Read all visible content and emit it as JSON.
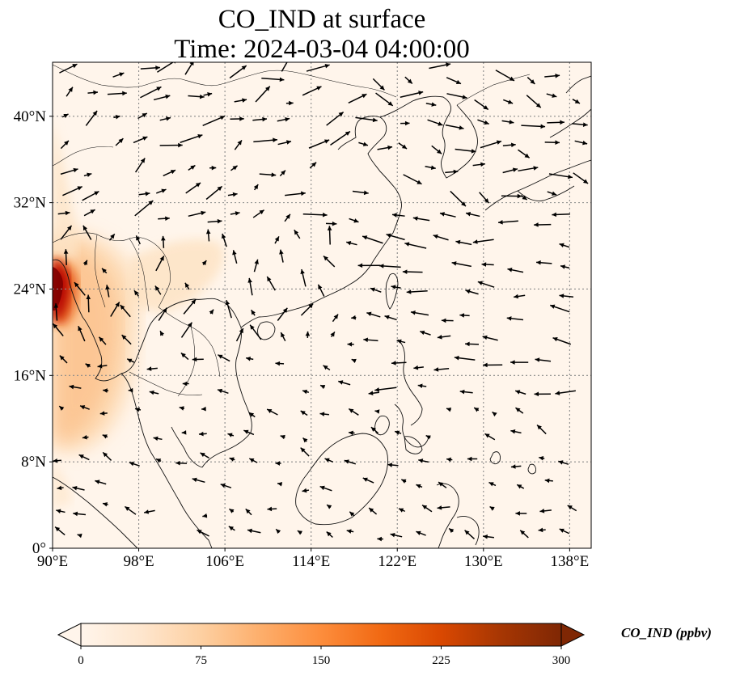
{
  "title": {
    "line1": "CO_IND at surface",
    "line2": "Time: 2024-03-04 04:00:00"
  },
  "map": {
    "lon_range": [
      90,
      140
    ],
    "lat_range": [
      0,
      45
    ],
    "lon_ticks": [
      {
        "value": 90,
        "label": "90°E"
      },
      {
        "value": 98,
        "label": "98°E"
      },
      {
        "value": 106,
        "label": "106°E"
      },
      {
        "value": 114,
        "label": "114°E"
      },
      {
        "value": 122,
        "label": "122°E"
      },
      {
        "value": 130,
        "label": "130°E"
      },
      {
        "value": 138,
        "label": "138°E"
      }
    ],
    "lat_ticks": [
      {
        "value": 0,
        "label": "0°"
      },
      {
        "value": 8,
        "label": "8°N"
      },
      {
        "value": 16,
        "label": "16°N"
      },
      {
        "value": 24,
        "label": "24°N"
      },
      {
        "value": 32,
        "label": "32°N"
      },
      {
        "value": 40,
        "label": "40°N"
      }
    ],
    "gridlines": true
  },
  "colorbar": {
    "label": "CO_IND (ppbv)",
    "min": 0,
    "max": 300,
    "ticks": [
      {
        "value": 0,
        "label": "0"
      },
      {
        "value": 75,
        "label": "75"
      },
      {
        "value": 150,
        "label": "150"
      },
      {
        "value": 225,
        "label": "225"
      },
      {
        "value": 300,
        "label": "300"
      }
    ],
    "colormap": [
      "#fff5eb",
      "#fee6ce",
      "#fdd0a2",
      "#fdae6b",
      "#fd8d3c",
      "#f16913",
      "#d94801",
      "#a63603",
      "#7f2704"
    ],
    "extend": "both"
  },
  "colors": {
    "ocean_background": "#fff5eb",
    "gridline": "#8a8a8a",
    "coastline": "#111111",
    "wind_vector": "#000000"
  }
}
